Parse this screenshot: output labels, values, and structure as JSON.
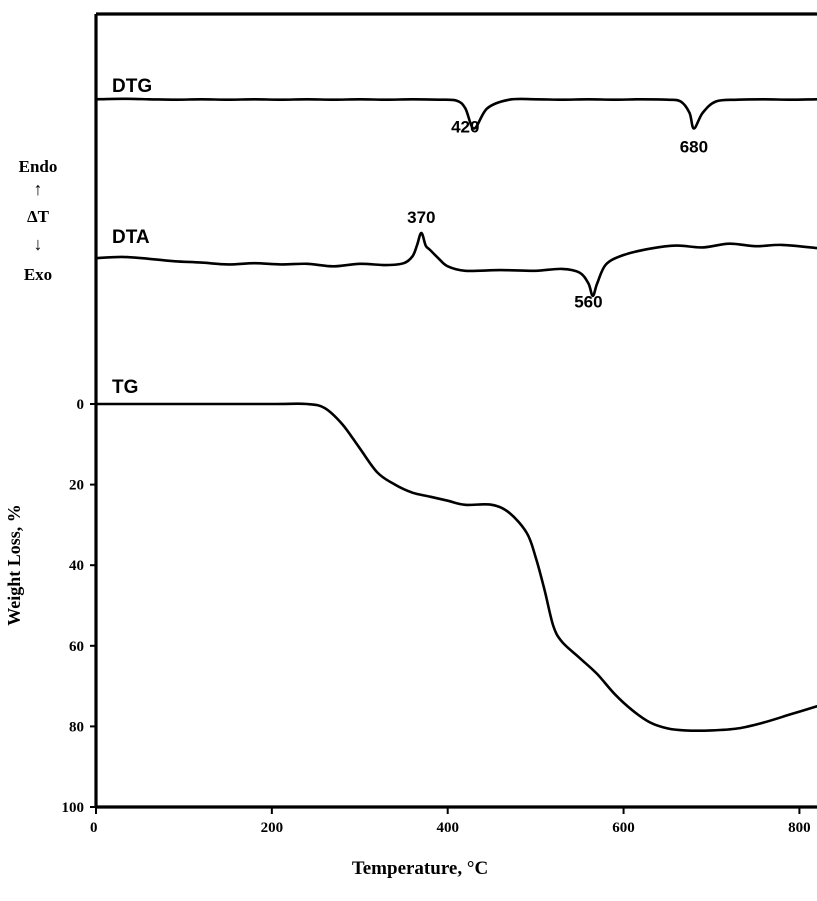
{
  "chart_data": {
    "type": "line",
    "title": "",
    "xlabel": "Temperature, °C",
    "ylabel": "Weight Loss, %",
    "xlim": [
      0,
      820
    ],
    "ylim": [
      100,
      0
    ],
    "grid": false,
    "x_ticks": [
      "0",
      "200",
      "400",
      "600",
      "800"
    ],
    "y_ticks": [
      "0",
      "20",
      "40",
      "60",
      "80",
      "100"
    ],
    "dta_axis": {
      "top": "Endo",
      "up_arrow": "↑",
      "middle": "ΔT",
      "down_arrow": "↓",
      "bottom": "Exo"
    },
    "series": [
      {
        "name": "DTG",
        "x": [
          0,
          30,
          60,
          90,
          120,
          150,
          180,
          210,
          240,
          270,
          300,
          330,
          360,
          390,
          410,
          420,
          430,
          445,
          470,
          500,
          530,
          560,
          590,
          620,
          650,
          665,
          675,
          680,
          690,
          705,
          730,
          760,
          790,
          820
        ],
        "values": [
          0.5,
          0.4,
          0.5,
          0.6,
          0.5,
          0.6,
          0.5,
          0.6,
          0.5,
          0.6,
          0.5,
          0.6,
          0.5,
          0.6,
          0.8,
          2.5,
          7.0,
          2.5,
          0.6,
          0.5,
          0.6,
          0.5,
          0.6,
          0.5,
          0.6,
          1.0,
          3.5,
          7.0,
          3.5,
          1.0,
          0.6,
          0.5,
          0.6,
          0.5
        ]
      },
      {
        "name": "DTA",
        "x": [
          0,
          30,
          60,
          90,
          120,
          150,
          180,
          210,
          240,
          270,
          300,
          330,
          350,
          360,
          365,
          370,
          375,
          380,
          390,
          400,
          420,
          460,
          500,
          530,
          550,
          560,
          565,
          570,
          580,
          600,
          630,
          660,
          690,
          720,
          750,
          780,
          820
        ],
        "values": [
          0.5,
          0.3,
          0.6,
          1.0,
          1.2,
          1.5,
          1.3,
          1.5,
          1.4,
          1.8,
          1.4,
          1.6,
          1.3,
          0.2,
          -1.5,
          -3.5,
          -1.5,
          -0.8,
          0.6,
          1.8,
          2.5,
          2.4,
          2.5,
          2.2,
          2.8,
          4.5,
          6.5,
          4.5,
          1.5,
          0.0,
          -1.0,
          -1.5,
          -1.2,
          -1.8,
          -1.4,
          -1.6,
          -1.1
        ]
      },
      {
        "name": "TG",
        "x": [
          0,
          100,
          200,
          240,
          260,
          280,
          300,
          320,
          340,
          360,
          380,
          400,
          420,
          450,
          470,
          490,
          500,
          510,
          520,
          530,
          550,
          570,
          590,
          610,
          630,
          650,
          670,
          700,
          730,
          760,
          790,
          820
        ],
        "values": [
          0,
          0,
          0,
          0,
          1,
          5,
          11,
          17,
          20,
          22,
          23,
          24,
          25,
          25,
          27,
          32,
          38,
          46,
          55,
          59,
          63,
          67,
          72,
          76,
          79,
          80.5,
          81,
          81,
          80.5,
          79,
          77,
          75
        ]
      }
    ],
    "annotations": [
      {
        "series": "DTG",
        "label": "420",
        "x": 420
      },
      {
        "series": "DTG",
        "label": "680",
        "x": 680
      },
      {
        "series": "DTA",
        "label": "370",
        "x": 370
      },
      {
        "series": "DTA",
        "label": "560",
        "x": 560
      }
    ]
  }
}
